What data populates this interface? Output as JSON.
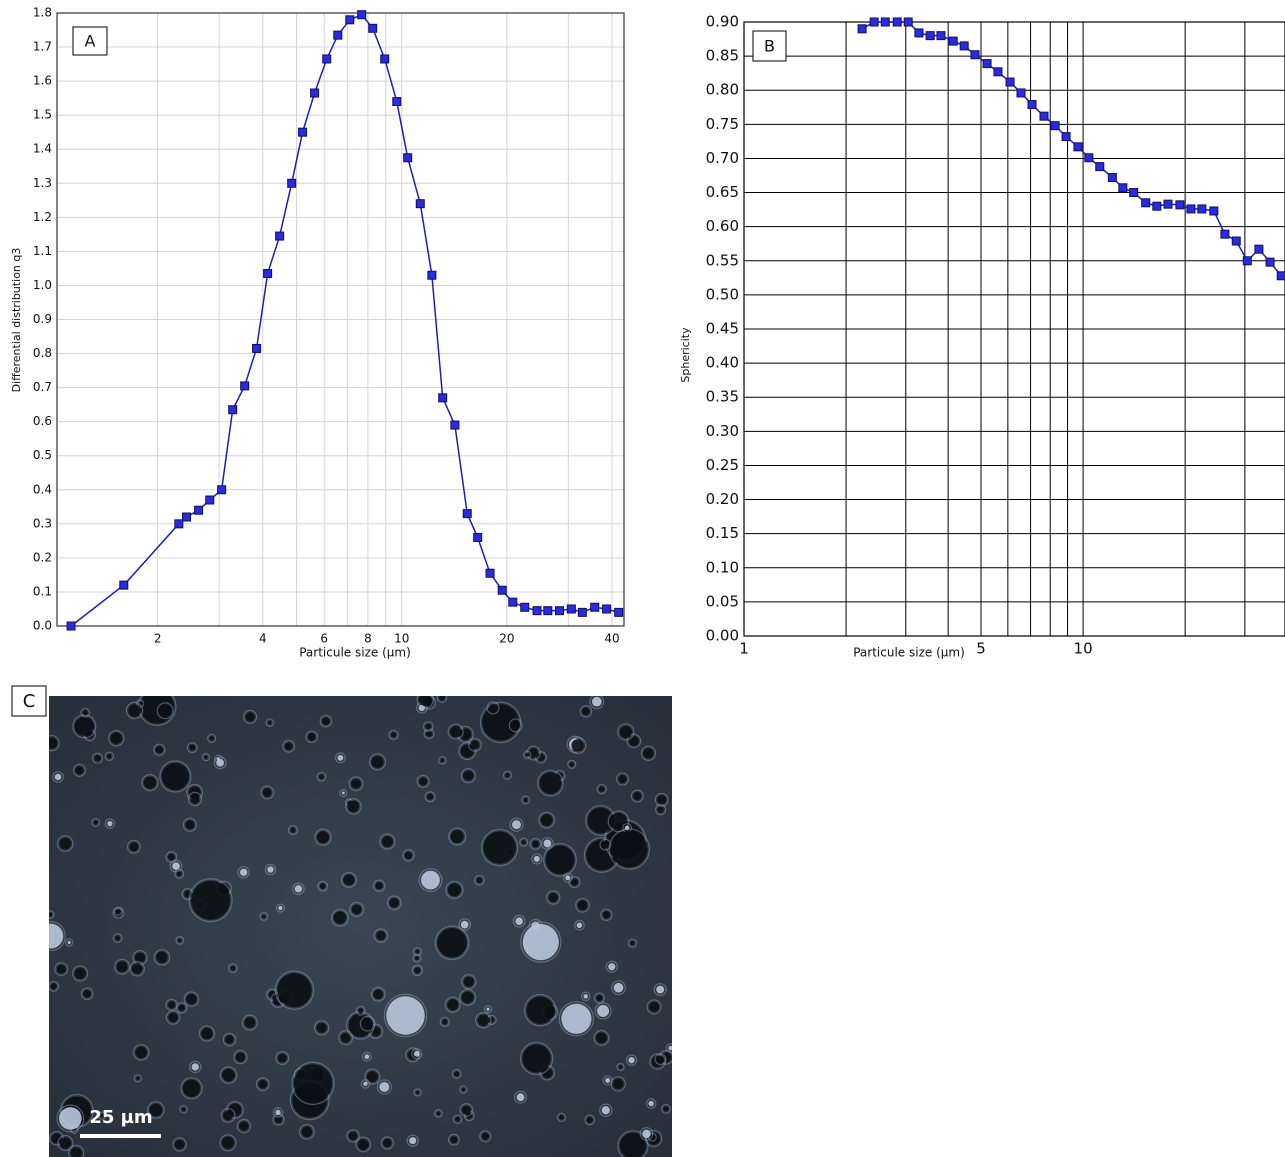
{
  "chart_data": [
    {
      "type": "line",
      "panel_label": "A",
      "x_label": "Particule size (µm)",
      "y_label": "Differential distribution q3",
      "xscale": "log",
      "xlim": [
        1.03,
        43.3
      ],
      "ylim": [
        0,
        1.8
      ],
      "xticks": [
        2,
        4,
        6,
        8,
        10,
        20,
        40
      ],
      "minor_xticks": [
        3,
        5,
        7,
        9,
        30
      ],
      "yticks": [
        {
          "value": 0,
          "label": "0.0"
        },
        0.1,
        0.2,
        0.3,
        0.4,
        0.5,
        0.6,
        0.7,
        0.8,
        0.9,
        {
          "value": 1,
          "label": "1.0"
        },
        1.1,
        1.2,
        1.3,
        1.4,
        1.5,
        1.6,
        1.7,
        1.8
      ],
      "grid": true,
      "grid_color": "#d4d4d4",
      "x": [
        1.13,
        1.6,
        2.3,
        2.42,
        2.62,
        2.82,
        3.05,
        3.28,
        3.55,
        3.84,
        4.13,
        4.47,
        4.84,
        5.2,
        5.63,
        6.1,
        6.56,
        7.1,
        7.68,
        8.26,
        8.94,
        9.68,
        10.4,
        11.3,
        12.2,
        13.1,
        14.2,
        15.4,
        16.5,
        17.9,
        19.4,
        20.8,
        22.5,
        24.4,
        26.2,
        28.3,
        30.6,
        32.9,
        35.7,
        38.6,
        41.8
      ],
      "series": [
        {
          "color": "#1f1fb0",
          "values": [
            0,
            0.12,
            0.3,
            0.32,
            0.34,
            0.37,
            0.4,
            0.635,
            0.705,
            0.815,
            1.035,
            1.145,
            1.3,
            1.45,
            1.565,
            1.665,
            1.735,
            1.78,
            1.795,
            1.755,
            1.665,
            1.54,
            1.375,
            1.24,
            1.03,
            0.67,
            0.59,
            0.33,
            0.26,
            0.155,
            0.105,
            0.07,
            0.055,
            0.045,
            0.045,
            0.045,
            0.05,
            0.04,
            0.055,
            0.05,
            0.04
          ]
        }
      ]
    },
    {
      "type": "line",
      "panel_label": "B",
      "x_label": "Particule size (µm)",
      "y_label": "Sphericity",
      "xscale": "log",
      "xlim": [
        1,
        39.4
      ],
      "ylim": [
        0,
        0.9
      ],
      "xticks": [
        1,
        5,
        10
      ],
      "minor_xticks": [
        2,
        3,
        4,
        6,
        7,
        8,
        9,
        20,
        30
      ],
      "yticks": [
        {
          "value": 0,
          "label": "0.00"
        },
        {
          "value": 0.05,
          "label": "0.05"
        },
        {
          "value": 0.1,
          "label": "0.10"
        },
        {
          "value": 0.15,
          "label": "0.15"
        },
        {
          "value": 0.2,
          "label": "0.20"
        },
        {
          "value": 0.25,
          "label": "0.25"
        },
        {
          "value": 0.3,
          "label": "0.30"
        },
        {
          "value": 0.35,
          "label": "0.35"
        },
        {
          "value": 0.4,
          "label": "0.40"
        },
        {
          "value": 0.45,
          "label": "0.45"
        },
        {
          "value": 0.5,
          "label": "0.50"
        },
        {
          "value": 0.55,
          "label": "0.55"
        },
        {
          "value": 0.6,
          "label": "0.60"
        },
        {
          "value": 0.65,
          "label": "0.65"
        },
        {
          "value": 0.7,
          "label": "0.70"
        },
        {
          "value": 0.75,
          "label": "0.75"
        },
        {
          "value": 0.8,
          "label": "0.80"
        },
        {
          "value": 0.85,
          "label": "0.85"
        },
        {
          "value": 0.9,
          "label": "0.90"
        }
      ],
      "grid": true,
      "grid_color": "#000000",
      "x": [
        2.23,
        2.42,
        2.61,
        2.83,
        3.05,
        3.28,
        3.54,
        3.81,
        4.14,
        4.46,
        4.8,
        5.21,
        5.61,
        6.09,
        6.56,
        7.07,
        7.67,
        8.27,
        8.91,
        9.66,
        10.4,
        11.2,
        12.2,
        13.1,
        14.1,
        15.3,
        16.5,
        17.8,
        19.3,
        20.8,
        22.4,
        24.3,
        26.2,
        28.3,
        30.5,
        33.0,
        35.6,
        38.4
      ],
      "series": [
        {
          "color": "#1f1fb0",
          "values": [
            0.89,
            0.9,
            0.9,
            0.9,
            0.9,
            0.884,
            0.88,
            0.88,
            0.872,
            0.865,
            0.852,
            0.839,
            0.827,
            0.812,
            0.796,
            0.779,
            0.762,
            0.748,
            0.732,
            0.717,
            0.701,
            0.688,
            0.672,
            0.657,
            0.65,
            0.635,
            0.63,
            0.633,
            0.632,
            0.626,
            0.626,
            0.623,
            0.589,
            0.579,
            0.55,
            0.567,
            0.548,
            0.528
          ]
        }
      ]
    }
  ],
  "panel_c": {
    "label": "C",
    "scale_bar": "25 µm"
  }
}
